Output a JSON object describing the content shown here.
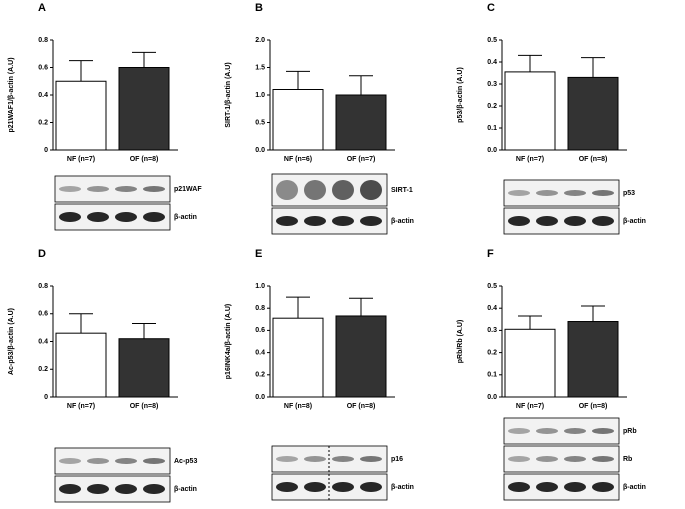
{
  "chart_data": [
    {
      "type": "bar",
      "title": "A",
      "ylabel": "p21WAF1/β-actin (A.U)",
      "categories": [
        "NF (n=7)",
        "OF (n=8)"
      ],
      "values": [
        0.5,
        0.6
      ],
      "errors": [
        0.15,
        0.11
      ],
      "colors": [
        "#ffffff",
        "#333333"
      ],
      "ylim": [
        0,
        0.8
      ],
      "yticks": [
        0,
        0.2,
        0.4,
        0.6,
        0.8
      ],
      "blot_labels": [
        "p21WAF",
        "β-actin"
      ]
    },
    {
      "type": "bar",
      "title": "B",
      "ylabel": "SIRT-1/β-actin (A.U)",
      "categories": [
        "NF (n=6)",
        "OF (n=7)"
      ],
      "values": [
        1.1,
        1.0
      ],
      "errors": [
        0.33,
        0.35
      ],
      "colors": [
        "#ffffff",
        "#333333"
      ],
      "ylim": [
        0,
        2.0
      ],
      "yticks": [
        {
          "value": 0,
          "label": "0.0"
        },
        0.5,
        {
          "value": 1,
          "label": "1.0"
        },
        1.5,
        {
          "value": 2,
          "label": "2.0"
        }
      ],
      "blot_labels": [
        "SIRT-1",
        "β-actin"
      ]
    },
    {
      "type": "bar",
      "title": "C",
      "ylabel": "p53/β-actin (A.U)",
      "categories": [
        "NF (n=7)",
        "OF (n=8)"
      ],
      "values": [
        0.355,
        0.33
      ],
      "errors": [
        0.075,
        0.09
      ],
      "colors": [
        "#ffffff",
        "#333333"
      ],
      "ylim": [
        0,
        0.5
      ],
      "yticks": [
        {
          "value": 0,
          "label": "0.0"
        },
        0.1,
        0.2,
        0.3,
        0.4,
        0.5
      ],
      "blot_labels": [
        "p53",
        "β-actin"
      ]
    },
    {
      "type": "bar",
      "title": "D",
      "ylabel": "Ac-p53/β-actin (A.U)",
      "categories": [
        "NF (n=7)",
        "OF (n=8)"
      ],
      "values": [
        0.46,
        0.42
      ],
      "errors": [
        0.14,
        0.11
      ],
      "colors": [
        "#ffffff",
        "#333333"
      ],
      "ylim": [
        0,
        0.8
      ],
      "yticks": [
        0,
        0.2,
        0.4,
        0.6,
        0.8
      ],
      "blot_labels": [
        "Ac-p53",
        "β-actin"
      ]
    },
    {
      "type": "bar",
      "title": "E",
      "ylabel": "p16INK4a/β-actin (A.U)",
      "categories": [
        "NF (n=8)",
        "OF (n=8)"
      ],
      "values": [
        0.71,
        0.73
      ],
      "errors": [
        0.19,
        0.16
      ],
      "colors": [
        "#ffffff",
        "#333333"
      ],
      "ylim": [
        0,
        1.0
      ],
      "yticks": [
        {
          "value": 0,
          "label": "0.0"
        },
        0.2,
        0.4,
        0.6,
        0.8,
        {
          "value": 1,
          "label": "1.0"
        }
      ],
      "blot_labels": [
        "p16",
        "β-actin"
      ]
    },
    {
      "type": "bar",
      "title": "F",
      "ylabel": "pRb/Rb (A.U)",
      "categories": [
        "NF (n=7)",
        "OF (n=8)"
      ],
      "values": [
        0.305,
        0.34
      ],
      "errors": [
        0.06,
        0.07
      ],
      "colors": [
        "#ffffff",
        "#333333"
      ],
      "ylim": [
        0,
        0.5
      ],
      "yticks": [
        {
          "value": 0,
          "label": "0.0"
        },
        0.1,
        0.2,
        0.3,
        0.4,
        0.5
      ],
      "blot_labels": [
        "pRb",
        "Rb",
        "β-actin"
      ]
    }
  ]
}
